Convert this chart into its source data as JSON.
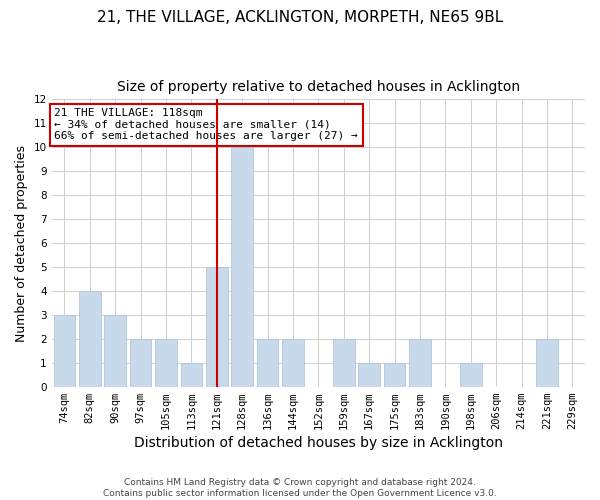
{
  "title": "21, THE VILLAGE, ACKLINGTON, MORPETH, NE65 9BL",
  "subtitle": "Size of property relative to detached houses in Acklington",
  "xlabel": "Distribution of detached houses by size in Acklington",
  "ylabel": "Number of detached properties",
  "categories": [
    "74sqm",
    "82sqm",
    "90sqm",
    "97sqm",
    "105sqm",
    "113sqm",
    "121sqm",
    "128sqm",
    "136sqm",
    "144sqm",
    "152sqm",
    "159sqm",
    "167sqm",
    "175sqm",
    "183sqm",
    "190sqm",
    "198sqm",
    "206sqm",
    "214sqm",
    "221sqm",
    "229sqm"
  ],
  "values": [
    3,
    4,
    3,
    2,
    2,
    1,
    5,
    10,
    2,
    2,
    0,
    2,
    1,
    1,
    2,
    0,
    1,
    0,
    0,
    2,
    0
  ],
  "bar_color": "#c9d9ec",
  "bar_edgecolor": "#a8bfd4",
  "highlight_index": 6,
  "highlight_color": "#cc0000",
  "ylim": [
    0,
    12
  ],
  "yticks": [
    0,
    1,
    2,
    3,
    4,
    5,
    6,
    7,
    8,
    9,
    10,
    11,
    12
  ],
  "annotation_line1": "21 THE VILLAGE: 118sqm",
  "annotation_line2": "← 34% of detached houses are smaller (14)",
  "annotation_line3": "66% of semi-detached houses are larger (27) →",
  "annotation_box_edgecolor": "#cc0000",
  "footer_line1": "Contains HM Land Registry data © Crown copyright and database right 2024.",
  "footer_line2": "Contains public sector information licensed under the Open Government Licence v3.0.",
  "background_color": "#ffffff",
  "grid_color": "#d0d0d0",
  "title_fontsize": 11,
  "subtitle_fontsize": 10,
  "tick_fontsize": 7.5,
  "ylabel_fontsize": 9,
  "xlabel_fontsize": 10,
  "annotation_fontsize": 8,
  "footer_fontsize": 6.5
}
